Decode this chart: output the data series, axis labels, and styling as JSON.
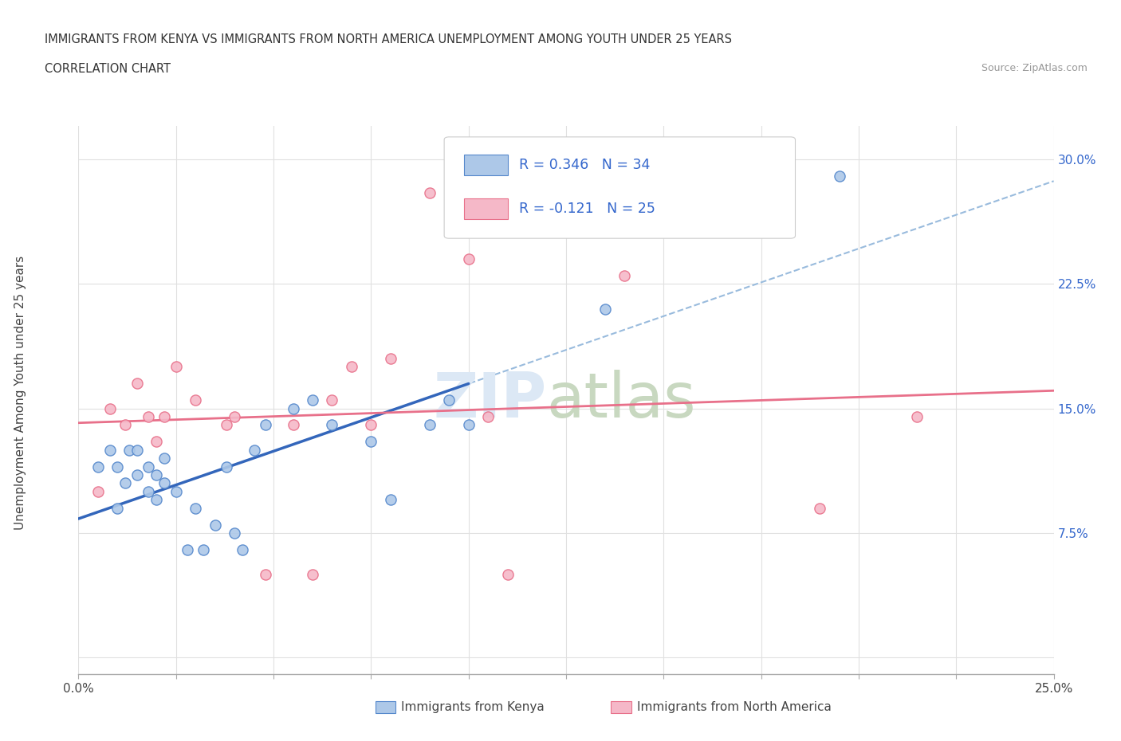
{
  "title_line1": "IMMIGRANTS FROM KENYA VS IMMIGRANTS FROM NORTH AMERICA UNEMPLOYMENT AMONG YOUTH UNDER 25 YEARS",
  "title_line2": "CORRELATION CHART",
  "source_text": "Source: ZipAtlas.com",
  "ylabel": "Unemployment Among Youth under 25 years",
  "legend_label1": "Immigrants from Kenya",
  "legend_label2": "Immigrants from North America",
  "r1": 0.346,
  "n1": 34,
  "r2": -0.121,
  "n2": 25,
  "color_kenya_fill": "#adc8e8",
  "color_kenya_edge": "#5588cc",
  "color_na_fill": "#f5b8c8",
  "color_na_edge": "#e8708a",
  "color_kenya_trend": "#3366bb",
  "color_na_trend": "#e8708a",
  "color_dashed": "#99bbdd",
  "xlim": [
    0.0,
    0.25
  ],
  "ylim": [
    -0.01,
    0.32
  ],
  "xticks": [
    0.0,
    0.025,
    0.05,
    0.075,
    0.1,
    0.125,
    0.15,
    0.175,
    0.2,
    0.225,
    0.25
  ],
  "yticks": [
    0.0,
    0.075,
    0.15,
    0.225,
    0.3
  ],
  "kenya_x": [
    0.005,
    0.008,
    0.01,
    0.01,
    0.012,
    0.013,
    0.015,
    0.015,
    0.018,
    0.018,
    0.02,
    0.02,
    0.022,
    0.022,
    0.025,
    0.028,
    0.03,
    0.032,
    0.035,
    0.038,
    0.04,
    0.042,
    0.045,
    0.048,
    0.055,
    0.06,
    0.065,
    0.075,
    0.08,
    0.09,
    0.095,
    0.1,
    0.135,
    0.195
  ],
  "kenya_y": [
    0.115,
    0.125,
    0.09,
    0.115,
    0.105,
    0.125,
    0.11,
    0.125,
    0.1,
    0.115,
    0.095,
    0.11,
    0.105,
    0.12,
    0.1,
    0.065,
    0.09,
    0.065,
    0.08,
    0.115,
    0.075,
    0.065,
    0.125,
    0.14,
    0.15,
    0.155,
    0.14,
    0.13,
    0.095,
    0.14,
    0.155,
    0.14,
    0.21,
    0.29
  ],
  "na_x": [
    0.005,
    0.008,
    0.012,
    0.015,
    0.018,
    0.02,
    0.022,
    0.025,
    0.03,
    0.038,
    0.04,
    0.048,
    0.055,
    0.06,
    0.065,
    0.07,
    0.075,
    0.08,
    0.09,
    0.1,
    0.105,
    0.11,
    0.14,
    0.19,
    0.215
  ],
  "na_y": [
    0.1,
    0.15,
    0.14,
    0.165,
    0.145,
    0.13,
    0.145,
    0.175,
    0.155,
    0.14,
    0.145,
    0.05,
    0.14,
    0.05,
    0.155,
    0.175,
    0.14,
    0.18,
    0.28,
    0.24,
    0.145,
    0.05,
    0.23,
    0.09,
    0.145
  ],
  "watermark_zip": "ZIP",
  "watermark_atlas": "atlas",
  "background_color": "#ffffff",
  "grid_color": "#e0e0e0"
}
